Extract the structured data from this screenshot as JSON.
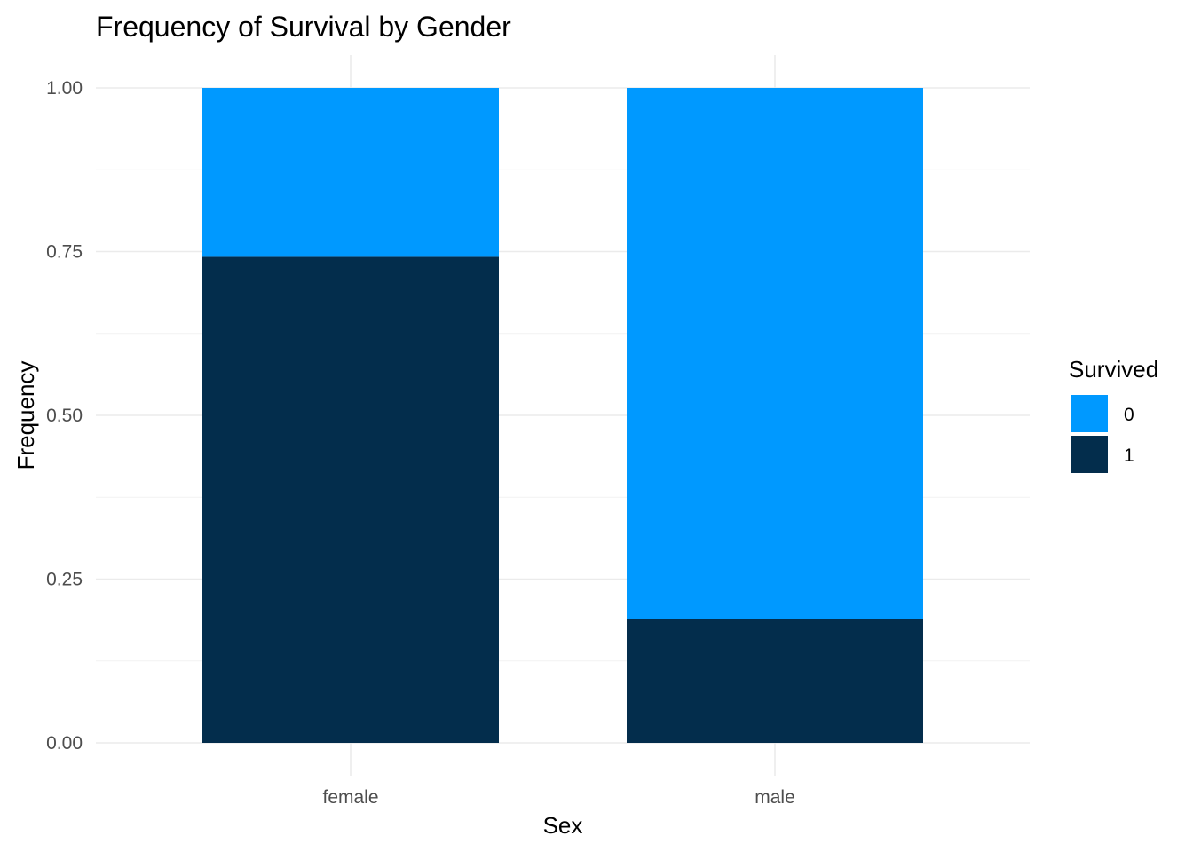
{
  "chart_data": {
    "type": "bar",
    "stacked": true,
    "title": "Frequency of Survival by Gender",
    "xlabel": "Sex",
    "ylabel": "Frequency",
    "categories": [
      "female",
      "male"
    ],
    "ylim": [
      0,
      1
    ],
    "yticks": [
      "0.00",
      "0.25",
      "0.50",
      "0.75",
      "1.00"
    ],
    "grid": true,
    "legend": {
      "title": "Survived",
      "position": "right"
    },
    "series": [
      {
        "name": "0",
        "values": [
          0.258,
          0.811
        ],
        "color": "#0099ff"
      },
      {
        "name": "1",
        "values": [
          0.742,
          0.189
        ],
        "color": "#032d4c"
      }
    ]
  }
}
